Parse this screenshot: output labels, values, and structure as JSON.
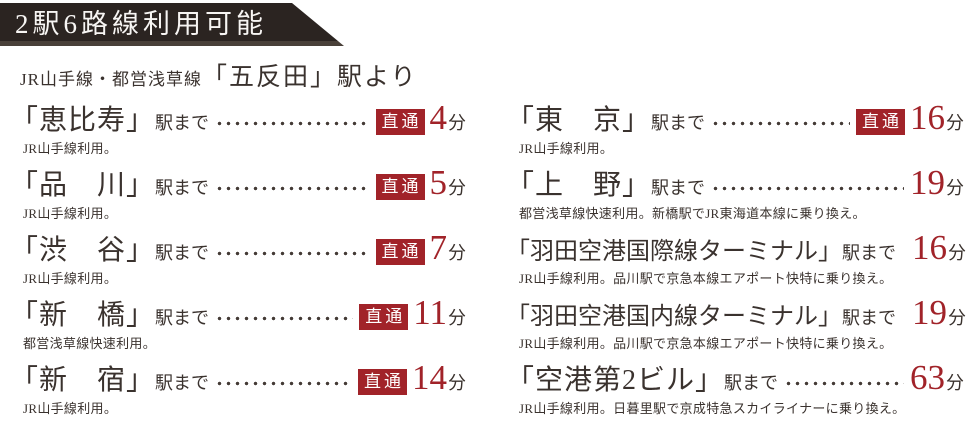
{
  "banner": {
    "title": "2駅6路線利用可能"
  },
  "subtitle": {
    "lines": "JR山手線・都営浅草線",
    "from_station": "「五反田」駅より"
  },
  "labels": {
    "direct": "直通",
    "to_station": "駅まで",
    "minutes_unit": "分"
  },
  "colors": {
    "accent_red": "#a12329",
    "banner_bg": "#2b2421",
    "text": "#3a322e"
  },
  "columns": {
    "left": {
      "rows": [
        {
          "station": "「恵比寿」",
          "minutes": "4",
          "direct": true,
          "note": "JR山手線利用。"
        },
        {
          "station": "「品　川」",
          "minutes": "5",
          "direct": true,
          "note": "JR山手線利用。"
        },
        {
          "station": "「渋　谷」",
          "minutes": "7",
          "direct": true,
          "note": "JR山手線利用。"
        },
        {
          "station": "「新　橋」",
          "minutes": "11",
          "direct": true,
          "note": "都営浅草線快速利用。"
        },
        {
          "station": "「新　宿」",
          "minutes": "14",
          "direct": true,
          "note": "JR山手線利用。"
        }
      ]
    },
    "right": {
      "rows": [
        {
          "station": "「東　京」",
          "minutes": "16",
          "direct": true,
          "note": "JR山手線利用。"
        },
        {
          "station": "「上　野」",
          "minutes": "19",
          "direct": false,
          "note": "都営浅草線快速利用。新橋駅でJR東海道本線に乗り換え。"
        },
        {
          "station": "「羽田空港国際線ターミナル」",
          "minutes": "16",
          "direct": false,
          "note": "JR山手線利用。品川駅で京急本線エアポート快特に乗り換え。"
        },
        {
          "station": "「羽田空港国内線ターミナル」",
          "minutes": "19",
          "direct": false,
          "note": "JR山手線利用。品川駅で京急本線エアポート快特に乗り換え。"
        },
        {
          "station": "「空港第2ビル」",
          "minutes": "63",
          "direct": false,
          "note": "JR山手線利用。日暮里駅で京成特急スカイライナーに乗り換え。"
        }
      ]
    }
  }
}
